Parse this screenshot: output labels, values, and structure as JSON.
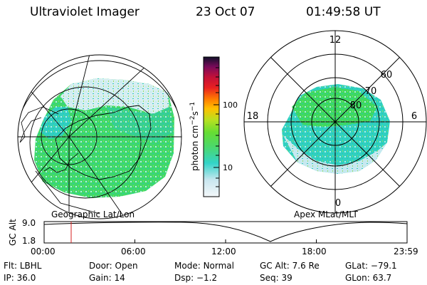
{
  "header": {
    "instrument": "Ultraviolet Imager",
    "date": "23 Oct 07",
    "time": "01:49:58 UT"
  },
  "panels": {
    "left_label": "Geographic Lat/Lon",
    "right_label": "Apex MLat/MLT"
  },
  "mlt_labels": {
    "top": "12",
    "left": "18",
    "right": "6",
    "bottom": "0"
  },
  "mlat_labels": [
    "60",
    "70",
    "80"
  ],
  "colorbar": {
    "unit_text": "photon cm",
    "unit_sup1": "−2",
    "unit_s": "s",
    "unit_sup2": "−1",
    "ticks": [
      "100",
      "10"
    ],
    "scale": "log",
    "colors": [
      "#eef4f8",
      "#c8e6ef",
      "#33d4c8",
      "#4cd86a",
      "#66dd33",
      "#9ae020",
      "#d8e020",
      "#ffc000",
      "#ff7a00",
      "#e82020",
      "#c0103a",
      "#8a0a5a",
      "#3a1060",
      "#10102a"
    ]
  },
  "gc_alt_plot": {
    "axis_label": "GC Alt",
    "y_ticks": [
      "9.0",
      "1.8"
    ],
    "x_ticks": [
      "00:00",
      "06:00",
      "12:00",
      "18:00",
      "23:59"
    ],
    "marker_color": "#d62020"
  },
  "info": {
    "row1": [
      {
        "key": "Flt:",
        "value": "LBHL"
      },
      {
        "key": "Door:",
        "value": "Open"
      },
      {
        "key": "Mode:",
        "value": "Normal"
      },
      {
        "key": "GC Alt:",
        "value": "7.6 Re"
      },
      {
        "key": "GLat:",
        "value": "−79.1"
      }
    ],
    "row2": [
      {
        "key": "IP:",
        "value": "36.0"
      },
      {
        "key": "Gain:",
        "value": "14"
      },
      {
        "key": "Dsp:",
        "value": "−1.2"
      },
      {
        "key": "Seq:",
        "value": "39"
      },
      {
        "key": "GLon:",
        "value": "63.7"
      }
    ]
  }
}
